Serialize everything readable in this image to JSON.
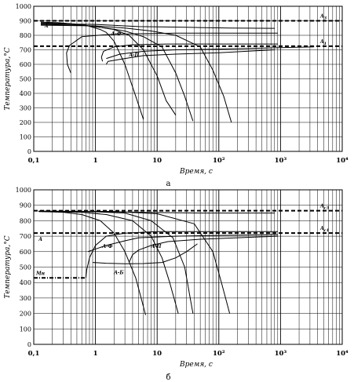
{
  "chart_data": [
    {
      "type": "line",
      "panel_label": "а",
      "xlabel": "Время, с",
      "ylabel": "Температура,°С",
      "x_scale": "log",
      "xlim": [
        0.1,
        10000
      ],
      "ylim": [
        0,
        1000
      ],
      "y_ticks": [
        "0",
        "100",
        "200",
        "300",
        "400",
        "500",
        "600",
        "700",
        "800",
        "900",
        "1000"
      ],
      "x_ticks": [
        "0,1",
        "1",
        "10",
        "10²",
        "10³",
        "10⁴"
      ],
      "grid": true,
      "reference_lines": [
        {
          "name": "A3",
          "label_main": "A",
          "label_sub": "3",
          "y": 900
        },
        {
          "name": "A1",
          "label_main": "A",
          "label_sub": "1",
          "y": 725
        }
      ],
      "region_labels": [
        {
          "text": "A",
          "x": 0.15,
          "y": 855
        },
        {
          "text": "A-Ф",
          "x": 1.8,
          "y": 800
        },
        {
          "text": "A-П",
          "x": 3.5,
          "y": 655
        }
      ],
      "series": [
        {
          "x": [
            0.13,
            0.25,
            0.7,
            1.2,
            1.5,
            2.0,
            3.0,
            4.5,
            6.0
          ],
          "y": [
            890,
            887,
            870,
            840,
            820,
            760,
            600,
            380,
            220
          ]
        },
        {
          "x": [
            0.13,
            0.4,
            1.0,
            2.0,
            3.5,
            6.0,
            10,
            14,
            20
          ],
          "y": [
            885,
            880,
            860,
            840,
            800,
            700,
            520,
            350,
            250
          ]
        },
        {
          "x": [
            0.13,
            0.6,
            1.5,
            3.0,
            6.0,
            12,
            20,
            28,
            38
          ],
          "y": [
            875,
            870,
            850,
            830,
            790,
            720,
            540,
            380,
            210
          ]
        },
        {
          "x": [
            0.13,
            1.0,
            3.0,
            8.0,
            20,
            50,
            80,
            120,
            160
          ],
          "y": [
            870,
            865,
            850,
            830,
            800,
            720,
            560,
            380,
            200
          ]
        },
        {
          "x": [
            0.13,
            1.0,
            5.0,
            30,
            150,
            800
          ],
          "y": [
            880,
            875,
            860,
            855,
            850,
            848
          ]
        },
        {
          "x": [
            0.4,
            0.35,
            0.34,
            0.38,
            0.6,
            1.5,
            4.0,
            20,
            200,
            900
          ],
          "y": [
            540,
            600,
            680,
            730,
            790,
            805,
            810,
            815,
            815,
            815
          ]
        },
        {
          "x": [
            1.3,
            1.25,
            1.35,
            2.0,
            4.0,
            15,
            100,
            900
          ],
          "y": [
            620,
            650,
            690,
            720,
            735,
            740,
            740,
            740
          ]
        },
        {
          "x": [
            1.5,
            1.6,
            3.0,
            6.0,
            20,
            100,
            800
          ],
          "y": [
            600,
            620,
            640,
            660,
            670,
            680,
            700
          ]
        },
        {
          "x": [
            1.5,
            2.5,
            6.0,
            20,
            100,
            300,
            1000,
            3500
          ],
          "y": [
            640,
            670,
            690,
            700,
            705,
            710,
            715,
            720
          ]
        }
      ]
    },
    {
      "type": "line",
      "panel_label": "б",
      "xlabel": "Время, с",
      "ylabel": "Температура,°С",
      "x_scale": "log",
      "xlim": [
        0.1,
        10000
      ],
      "ylim": [
        0,
        1000
      ],
      "y_ticks": [
        "0",
        "100",
        "200",
        "300",
        "400",
        "500",
        "600",
        "700",
        "800",
        "900",
        "1000"
      ],
      "x_ticks": [
        "0,1",
        "1",
        "10",
        "10²",
        "10³",
        "10⁴"
      ],
      "grid": true,
      "reference_lines": [
        {
          "name": "Ac3",
          "label_main": "A",
          "label_sub": "c3",
          "y": 865
        },
        {
          "name": "Ac1",
          "label_main": "A",
          "label_sub": "c1",
          "y": 720
        },
        {
          "name": "Mн",
          "label_main": "Mн",
          "label_sub": "",
          "y": 430,
          "x_end": 0.7
        }
      ],
      "region_labels": [
        {
          "text": "A",
          "x": 0.12,
          "y": 670
        },
        {
          "text": "A-Ф",
          "x": 1.3,
          "y": 625
        },
        {
          "text": "A-П",
          "x": 8.0,
          "y": 625
        },
        {
          "text": "A-Б",
          "x": 2.0,
          "y": 455
        }
      ],
      "series": [
        {
          "x": [
            0.12,
            0.3,
            0.6,
            1.2,
            2.0,
            3.0,
            4.5,
            5.5,
            6.5
          ],
          "y": [
            860,
            855,
            840,
            800,
            720,
            600,
            430,
            300,
            190
          ]
        },
        {
          "x": [
            0.12,
            0.6,
            1.5,
            4.0,
            8.0,
            12,
            16,
            22
          ],
          "y": [
            860,
            855,
            840,
            800,
            700,
            560,
            400,
            200
          ]
        },
        {
          "x": [
            0.12,
            1.0,
            3.0,
            8.0,
            18,
            28,
            38
          ],
          "y": [
            862,
            858,
            850,
            800,
            690,
            500,
            200
          ]
        },
        {
          "x": [
            0.12,
            2.0,
            10,
            40,
            80,
            110,
            150
          ],
          "y": [
            862,
            860,
            845,
            780,
            600,
            400,
            200
          ]
        },
        {
          "x": [
            0.12,
            1.0,
            5.0,
            50,
            400,
            800
          ],
          "y": [
            862,
            860,
            855,
            850,
            850,
            850
          ]
        },
        {
          "x": [
            0.7,
            0.72,
            0.8,
            1.0,
            1.5,
            3.0,
            10,
            100,
            900
          ],
          "y": [
            430,
            480,
            560,
            640,
            700,
            720,
            730,
            730,
            730
          ]
        },
        {
          "x": [
            0.75,
            1.5,
            3.0,
            5.0,
            20,
            100,
            900
          ],
          "y": [
            600,
            640,
            670,
            690,
            700,
            705,
            710
          ]
        },
        {
          "x": [
            3.5,
            4.0,
            5.0,
            8.0,
            15,
            50,
            200,
            900
          ],
          "y": [
            530,
            580,
            610,
            640,
            665,
            680,
            690,
            700
          ]
        },
        {
          "x": [
            0.9,
            1.5,
            3.0,
            6.0,
            12,
            20,
            30,
            45
          ],
          "y": [
            530,
            525,
            522,
            523,
            530,
            560,
            600,
            650
          ]
        }
      ]
    }
  ]
}
